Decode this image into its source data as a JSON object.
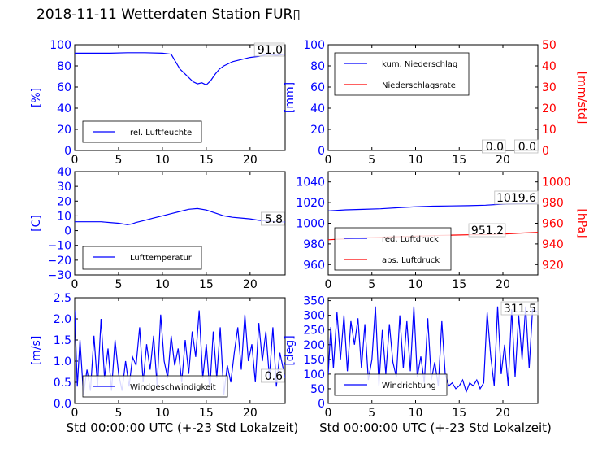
{
  "title": "2018-11-11 Wetterdaten Station FUR▯",
  "colors": {
    "left_axis": "#0000ff",
    "right_axis": "#ff0000",
    "line_blue": "#0000ff",
    "line_red": "#ff0000"
  },
  "chart_data": [
    {
      "id": "humidity",
      "type": "line",
      "ylabel": "[%]",
      "ylim": [
        0,
        100
      ],
      "yticks": [
        "0",
        "20",
        "40",
        "60",
        "80",
        "100"
      ],
      "xlim": [
        0,
        24
      ],
      "xticks": [
        "0",
        "5",
        "10",
        "15",
        "20"
      ],
      "value_label": "91.0",
      "legend": [
        "rel. Luftfeuchte"
      ],
      "series": [
        {
          "name": "rel. Luftfeuchte",
          "axis": "left",
          "color": "#0000ff",
          "x": [
            0,
            2,
            4,
            6,
            8,
            10,
            11,
            11.5,
            12,
            12.5,
            13,
            13.5,
            14,
            14.5,
            15,
            15.5,
            16,
            16.5,
            17,
            18,
            19,
            20,
            21,
            22,
            23,
            24
          ],
          "y": [
            92,
            92,
            92,
            92.5,
            92.5,
            92,
            91,
            84,
            77,
            73,
            69,
            65,
            63,
            64,
            62,
            66,
            72,
            77,
            80,
            84,
            86,
            88,
            89,
            91,
            90,
            91
          ]
        }
      ]
    },
    {
      "id": "precipitation",
      "type": "line",
      "ylabel": "[mm]",
      "ylabel_right": "[mm/std]",
      "ylim": [
        0,
        100
      ],
      "ylim_right": [
        0,
        50
      ],
      "yticks": [
        "0",
        "20",
        "40",
        "60",
        "80",
        "100"
      ],
      "yticks_right": [
        "0",
        "10",
        "20",
        "30",
        "40",
        "50"
      ],
      "xlim": [
        0,
        24
      ],
      "xticks": [
        "0",
        "5",
        "10",
        "15",
        "20"
      ],
      "value_label": "0.0",
      "value_label_right": "0.0",
      "legend": [
        "kum. Niederschlag",
        "Niederschlagsrate"
      ],
      "series": [
        {
          "name": "kum. Niederschlag",
          "axis": "left",
          "color": "#0000ff",
          "x": [
            0,
            24
          ],
          "y": [
            0,
            0
          ]
        },
        {
          "name": "Niederschlagsrate",
          "axis": "right",
          "color": "#ff0000",
          "x": [
            0,
            24
          ],
          "y": [
            0,
            0
          ]
        }
      ]
    },
    {
      "id": "temperature",
      "type": "line",
      "ylabel": "[C]",
      "ylim": [
        -30,
        40
      ],
      "yticks": [
        "−30",
        "−20",
        "−10",
        "0",
        "10",
        "20",
        "30",
        "40"
      ],
      "xlim": [
        0,
        24
      ],
      "xticks": [
        "0",
        "5",
        "10",
        "15",
        "20"
      ],
      "value_label": "5.8",
      "legend": [
        "Lufttemperatur"
      ],
      "series": [
        {
          "name": "Lufttemperatur",
          "axis": "left",
          "color": "#0000ff",
          "x": [
            0,
            1,
            2,
            3,
            4,
            5,
            5.5,
            6,
            6.5,
            7,
            8,
            9,
            10,
            11,
            12,
            13,
            14,
            15,
            16,
            17,
            18,
            19,
            20,
            21,
            22,
            23,
            24
          ],
          "y": [
            6,
            6,
            6,
            6,
            5.5,
            5,
            4.5,
            4,
            4.5,
            5.5,
            7,
            8.5,
            10,
            11.5,
            13,
            14.5,
            15,
            14,
            12,
            10,
            9,
            8.5,
            8,
            7,
            6.5,
            6,
            5.8
          ]
        }
      ]
    },
    {
      "id": "pressure",
      "type": "line",
      "ylabel_right": "[hPa]",
      "ylim": [
        950,
        1050
      ],
      "ylim_right": [
        910,
        1010
      ],
      "yticks": [
        "960",
        "980",
        "1000",
        "1020",
        "1040"
      ],
      "yticks_right": [
        "920",
        "940",
        "960",
        "980",
        "1000"
      ],
      "xlim": [
        0,
        24
      ],
      "xticks": [
        "0",
        "5",
        "10",
        "15",
        "20"
      ],
      "value_label": "1019.6",
      "value_label_right": "951.2",
      "legend": [
        "red. Luftdruck",
        "abs. Luftdruck"
      ],
      "series": [
        {
          "name": "red. Luftdruck",
          "axis": "left",
          "color": "#0000ff",
          "x": [
            0,
            2,
            4,
            6,
            8,
            10,
            12,
            14,
            16,
            18,
            20,
            22,
            24
          ],
          "y": [
            1012,
            1013,
            1013.5,
            1014,
            1015,
            1016,
            1016.5,
            1016.8,
            1017,
            1017.5,
            1018.5,
            1019,
            1019.6
          ]
        },
        {
          "name": "abs. Luftdruck",
          "axis": "right",
          "color": "#ff0000",
          "x": [
            0,
            2,
            4,
            6,
            8,
            10,
            12,
            14,
            16,
            18,
            20,
            22,
            24
          ],
          "y": [
            944,
            945,
            946,
            946.5,
            947,
            947.5,
            948,
            948.5,
            948.8,
            949,
            949.5,
            950.5,
            951.2
          ]
        }
      ]
    },
    {
      "id": "windspeed",
      "type": "line",
      "ylabel": "[m/s]",
      "xlabel": "Std 00:00:00 UTC (+-23 Std Lokalzeit)",
      "ylim": [
        0,
        2.5
      ],
      "yticks": [
        "0.0",
        "0.5",
        "1.0",
        "1.5",
        "2.0",
        "2.5"
      ],
      "xlim": [
        0,
        24
      ],
      "xticks": [
        "0",
        "5",
        "10",
        "15",
        "20"
      ],
      "value_label": "0.6",
      "legend": [
        "Windgeschwindigkeit"
      ],
      "series": [
        {
          "name": "Windgeschwindigkeit",
          "axis": "left",
          "color": "#0000ff",
          "x": [
            0,
            0.3,
            0.6,
            1,
            1.4,
            1.8,
            2.2,
            2.6,
            3,
            3.4,
            3.8,
            4.2,
            4.6,
            5,
            5.4,
            5.8,
            6.2,
            6.6,
            7,
            7.4,
            7.8,
            8.2,
            8.6,
            9,
            9.4,
            9.8,
            10.2,
            10.6,
            11,
            11.4,
            11.8,
            12.2,
            12.6,
            13,
            13.4,
            13.8,
            14.2,
            14.6,
            15,
            15.4,
            15.8,
            16.2,
            16.6,
            17,
            17.4,
            17.8,
            18.2,
            18.6,
            19,
            19.4,
            19.8,
            20.2,
            20.6,
            21,
            21.4,
            21.8,
            22.2,
            22.6,
            23,
            23.4,
            24
          ],
          "y": [
            2.2,
            0.4,
            1.5,
            0.2,
            0.8,
            0.3,
            1.6,
            0.4,
            2.0,
            0.6,
            1.3,
            0.3,
            1.5,
            0.7,
            0.3,
            1.0,
            0.4,
            1.1,
            0.9,
            1.8,
            0.5,
            1.4,
            0.8,
            1.6,
            0.4,
            2.1,
            1.0,
            0.6,
            1.6,
            0.9,
            1.3,
            0.5,
            1.5,
            0.7,
            1.7,
            1.1,
            2.2,
            0.6,
            1.4,
            0.3,
            1.7,
            0.6,
            1.8,
            0.2,
            0.9,
            0.5,
            1.2,
            1.8,
            0.8,
            2.1,
            1.0,
            1.4,
            0.5,
            1.9,
            1.0,
            1.7,
            0.6,
            1.8,
            0.4,
            1.2,
            0.6
          ]
        }
      ]
    },
    {
      "id": "winddirection",
      "type": "line",
      "ylabel": "[deg]",
      "xlabel": "Std 00:00:00 UTC (+-23 Std Lokalzeit)",
      "ylim": [
        0,
        360
      ],
      "yticks": [
        "0",
        "50",
        "100",
        "150",
        "200",
        "250",
        "300",
        "350"
      ],
      "xlim": [
        0,
        24
      ],
      "xticks": [
        "0",
        "5",
        "10",
        "15",
        "20"
      ],
      "value_label": "311.5",
      "legend": [
        "Windrichtung"
      ],
      "series": [
        {
          "name": "Windrichtung",
          "axis": "left",
          "color": "#0000ff",
          "x": [
            0,
            0.3,
            0.6,
            1,
            1.4,
            1.8,
            2.2,
            2.6,
            3,
            3.4,
            3.8,
            4.2,
            4.6,
            5,
            5.4,
            5.8,
            6.2,
            6.6,
            7,
            7.4,
            7.8,
            8.2,
            8.6,
            9,
            9.4,
            9.8,
            10.2,
            10.6,
            11,
            11.4,
            11.8,
            12.2,
            12.6,
            13,
            13.4,
            13.8,
            14.2,
            14.6,
            15,
            15.4,
            15.8,
            16.2,
            16.6,
            17,
            17.4,
            17.8,
            18.2,
            18.6,
            19,
            19.4,
            19.8,
            20.2,
            20.6,
            21,
            21.4,
            21.8,
            22.2,
            22.6,
            23,
            23.4,
            24
          ],
          "y": [
            100,
            260,
            120,
            310,
            150,
            300,
            110,
            280,
            200,
            290,
            120,
            270,
            80,
            150,
            330,
            60,
            250,
            100,
            270,
            140,
            90,
            300,
            120,
            280,
            110,
            330,
            90,
            160,
            70,
            290,
            80,
            140,
            60,
            280,
            100,
            60,
            70,
            50,
            60,
            80,
            40,
            70,
            60,
            80,
            50,
            70,
            310,
            160,
            60,
            330,
            100,
            200,
            60,
            320,
            90,
            300,
            150,
            330,
            120,
            320,
            311
          ]
        }
      ]
    }
  ]
}
